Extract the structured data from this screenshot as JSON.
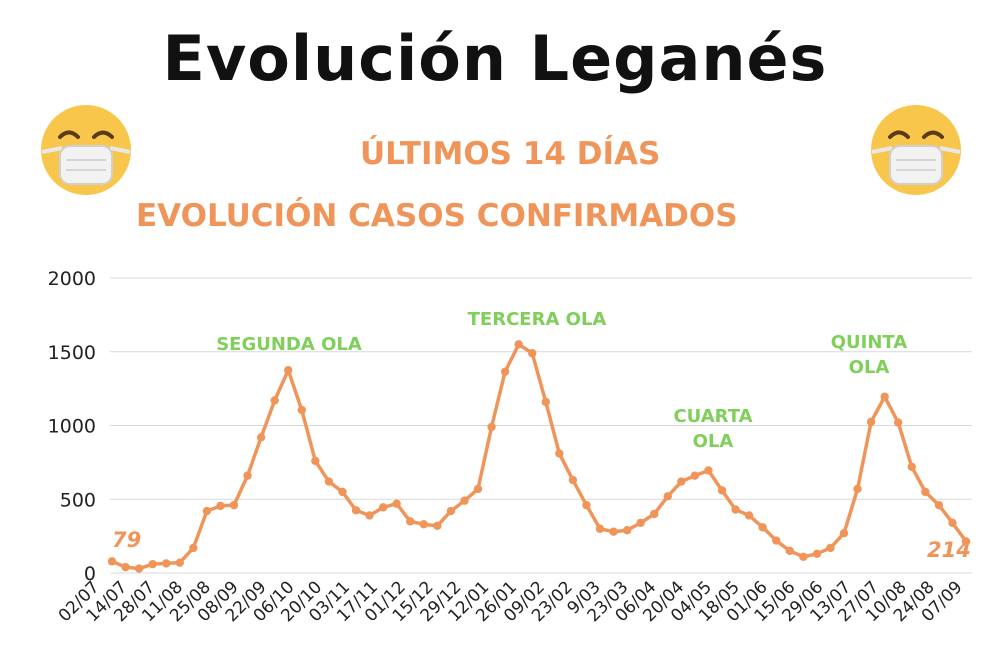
{
  "header": {
    "title": "Evolución Leganés",
    "subtitle_1": "ÚLTIMOS 14 DÍAS",
    "subtitle_2": "EVOLUCIÓN CASOS CONFIRMADOS"
  },
  "icons": {
    "left": "face-with-mask-icon",
    "right": "face-with-mask-icon"
  },
  "colors": {
    "line": "#F0955A",
    "title": "#111111",
    "subtitle": "#F0955A",
    "wave_labels": "#7FCF5A",
    "grid": "#D9D9D9",
    "emoji_face": "#F8C64A",
    "emoji_mask": "#F2F2F2"
  },
  "chart_data": {
    "type": "line",
    "ylim": [
      0,
      2000
    ],
    "yticks": [
      0,
      500,
      1000,
      1500,
      2000
    ],
    "grid": true,
    "tick_labels": [
      "02/07",
      "14/07",
      "28/07",
      "11/08",
      "25/08",
      "08/09",
      "22/09",
      "06/10",
      "20/10",
      "03/11",
      "17/11",
      "01/12",
      "15/12",
      "29/12",
      "12/01",
      "26/01",
      "09/02",
      "23/02",
      "9/03",
      "23/03",
      "06/04",
      "20/04",
      "04/05",
      "18/05",
      "01/06",
      "15/06",
      "29/06",
      "13/07",
      "27/07",
      "10/08",
      "24/08",
      "07/09"
    ],
    "series": [
      {
        "values": [
          79,
          40,
          30,
          60,
          65,
          70,
          170,
          420,
          455,
          460,
          660,
          920,
          1170,
          1375,
          1105,
          760,
          620,
          550,
          425,
          390,
          445,
          470,
          350,
          330,
          320,
          420,
          490,
          570,
          990,
          1365,
          1550,
          1490,
          1160,
          810,
          630,
          460,
          300,
          280,
          290,
          340,
          400,
          520,
          620,
          660,
          695,
          560,
          430,
          390,
          310,
          220,
          150,
          110,
          130,
          170,
          270,
          570,
          1025,
          1195,
          1020,
          720,
          550,
          460,
          340,
          214
        ]
      }
    ],
    "annotations": [
      {
        "text": "SEGUNDA OLA"
      },
      {
        "text": "TERCERA OLA"
      },
      {
        "text": "CUARTA OLA"
      },
      {
        "text": "QUINTA OLA"
      }
    ],
    "value_labels": {
      "first": "79",
      "last": "214"
    }
  }
}
